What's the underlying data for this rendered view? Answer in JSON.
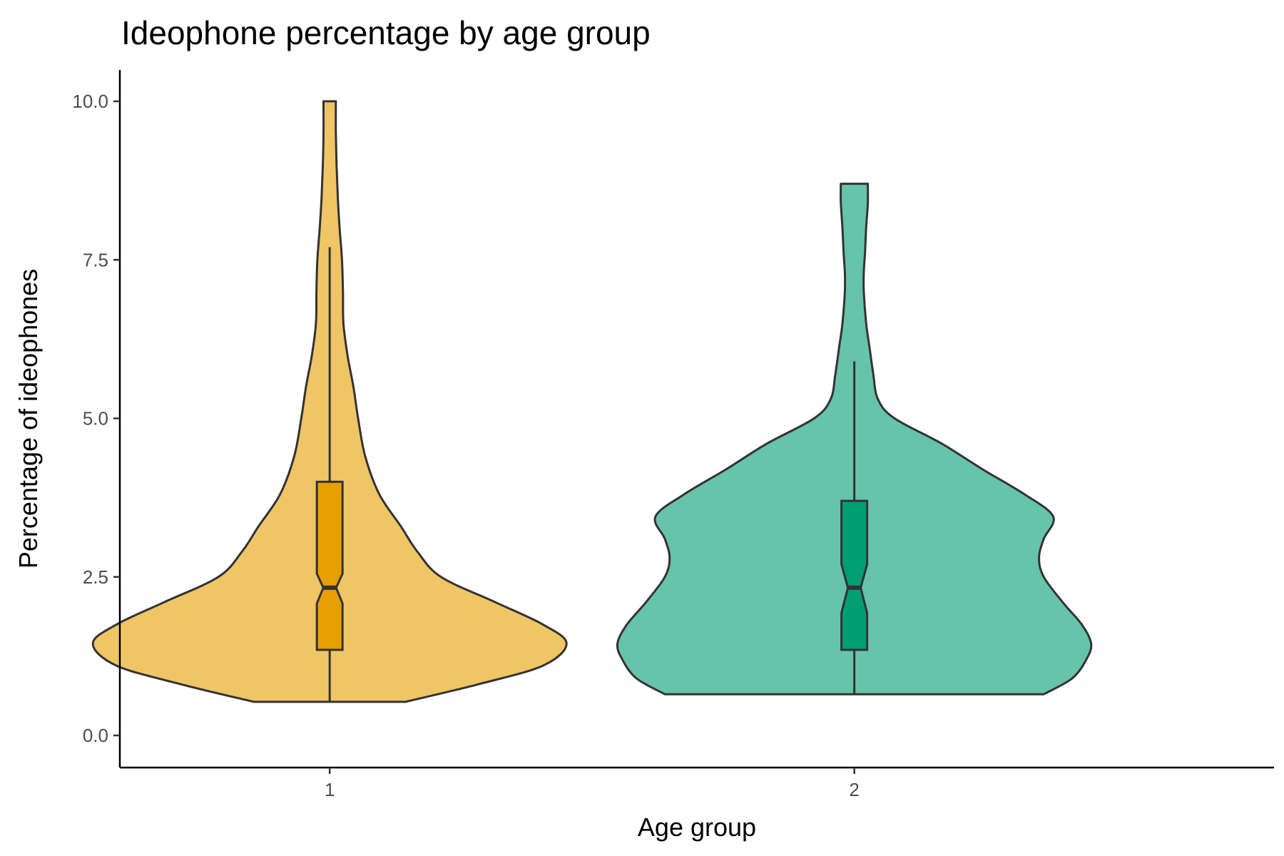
{
  "chart_data": {
    "type": "violin",
    "title": "Ideophone percentage by age group",
    "xlabel": "Age group",
    "ylabel": "Percentage of ideophones",
    "ylim": [
      -0.5,
      10.4
    ],
    "yticks": [
      0.0,
      2.5,
      5.0,
      7.5,
      10.0
    ],
    "ytick_labels": [
      "0.0",
      "2.5",
      "5.0",
      "7.5",
      "10.0"
    ],
    "categories": [
      "1",
      "2"
    ],
    "grid": false,
    "legend": "none",
    "groups": [
      {
        "category": "1",
        "fill": "#F0C566",
        "box_fill": "#E69F00",
        "min": 0.53,
        "max": 10.0,
        "q1": 1.35,
        "median": 2.33,
        "q3": 4.0,
        "notch_low": 2.08,
        "notch_high": 2.55,
        "whisker_low": 0.53,
        "whisker_high": 7.7,
        "density": [
          [
            0.53,
            0.32
          ],
          [
            0.8,
            0.62
          ],
          [
            1.1,
            0.9
          ],
          [
            1.45,
            1.0
          ],
          [
            1.75,
            0.9
          ],
          [
            2.1,
            0.7
          ],
          [
            2.5,
            0.47
          ],
          [
            2.9,
            0.37
          ],
          [
            3.3,
            0.3
          ],
          [
            3.8,
            0.21
          ],
          [
            4.4,
            0.15
          ],
          [
            5.0,
            0.12
          ],
          [
            5.5,
            0.1
          ],
          [
            6.0,
            0.075
          ],
          [
            6.5,
            0.058
          ],
          [
            7.0,
            0.056
          ],
          [
            7.5,
            0.052
          ],
          [
            8.0,
            0.042
          ],
          [
            8.5,
            0.034
          ],
          [
            9.0,
            0.029
          ],
          [
            9.5,
            0.026
          ],
          [
            10.0,
            0.026
          ]
        ]
      },
      {
        "category": "2",
        "fill": "#66C4AB",
        "box_fill": "#009E73",
        "min": 0.65,
        "max": 8.7,
        "q1": 1.35,
        "median": 2.33,
        "q3": 3.7,
        "notch_low": 1.93,
        "notch_high": 2.7,
        "whisker_low": 0.65,
        "whisker_high": 5.9,
        "density": [
          [
            0.65,
            0.8
          ],
          [
            0.9,
            0.92
          ],
          [
            1.2,
            0.98
          ],
          [
            1.45,
            1.0
          ],
          [
            1.75,
            0.96
          ],
          [
            2.1,
            0.88
          ],
          [
            2.5,
            0.8
          ],
          [
            2.8,
            0.78
          ],
          [
            3.1,
            0.8
          ],
          [
            3.45,
            0.84
          ],
          [
            3.8,
            0.72
          ],
          [
            4.2,
            0.54
          ],
          [
            4.6,
            0.37
          ],
          [
            5.0,
            0.17
          ],
          [
            5.3,
            0.1
          ],
          [
            5.7,
            0.08
          ],
          [
            6.1,
            0.065
          ],
          [
            6.5,
            0.05
          ],
          [
            7.0,
            0.04
          ],
          [
            7.3,
            0.04
          ],
          [
            7.6,
            0.045
          ],
          [
            8.0,
            0.05
          ],
          [
            8.4,
            0.057
          ],
          [
            8.7,
            0.057
          ]
        ]
      }
    ]
  }
}
